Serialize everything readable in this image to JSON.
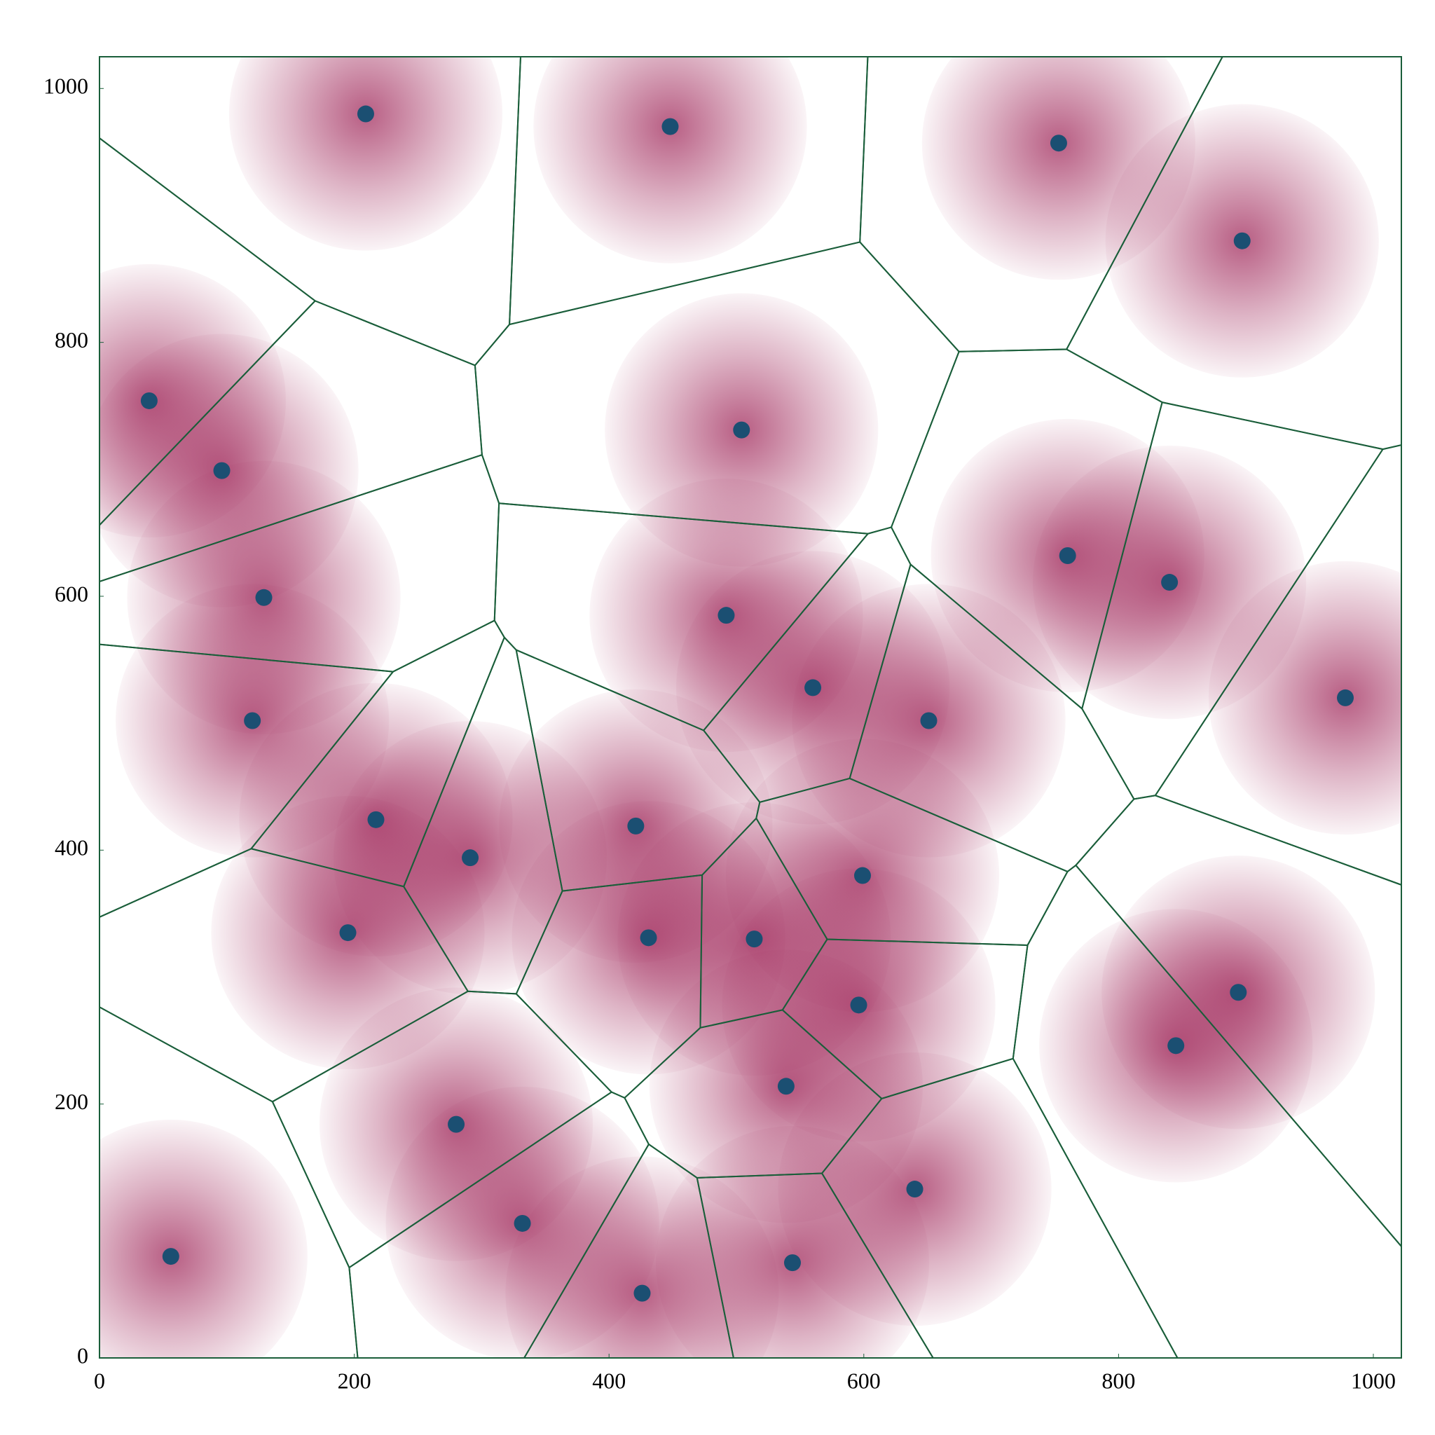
{
  "chart_data": {
    "type": "scatter",
    "x": [
      209,
      448,
      753,
      897,
      39,
      96,
      504,
      760,
      840,
      129,
      492,
      560,
      120,
      651,
      978,
      217,
      421,
      291,
      599,
      195,
      431,
      514,
      596,
      894,
      845,
      539,
      280,
      640,
      332,
      56,
      544,
      426
    ],
    "values": [
      980,
      970,
      957,
      880,
      754,
      699,
      731,
      632,
      611,
      599,
      585,
      528,
      502,
      502,
      520,
      424,
      419,
      394,
      380,
      335,
      331,
      330,
      278,
      288,
      246,
      214,
      184,
      133,
      106,
      80,
      75,
      51
    ],
    "color": "#1b4f72",
    "edge_color": "#1a5e3a",
    "heat_color": "#a0285a",
    "xlim": [
      0,
      1022
    ],
    "ylim": [
      0,
      1025
    ],
    "xticks": [
      0,
      200,
      400,
      600,
      800,
      1000
    ],
    "yticks": [
      0,
      200,
      400,
      600,
      800,
      1000
    ]
  }
}
